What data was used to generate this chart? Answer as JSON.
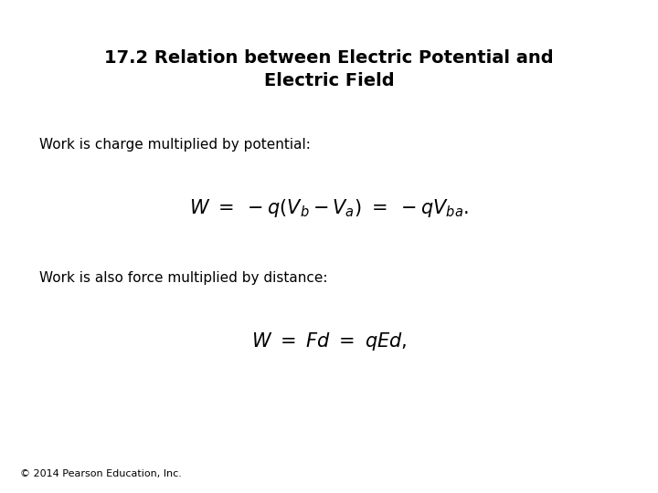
{
  "title_line1": "17.2 Relation between Electric Potential and",
  "title_line2": "Electric Field",
  "text1": "Work is charge multiplied by potential:",
  "eq1": "$W \\ = \\ -q(V_b - V_a) \\ = \\ -qV_{ba}.$",
  "text2": "Work is also force multiplied by distance:",
  "eq2": "$W \\ = \\ Fd \\ = \\ qEd,$",
  "footer": "© 2014 Pearson Education, Inc.",
  "bg_color": "#ffffff",
  "title_fontsize": 14,
  "text_fontsize": 11,
  "eq_fontsize": 15,
  "footer_fontsize": 8
}
